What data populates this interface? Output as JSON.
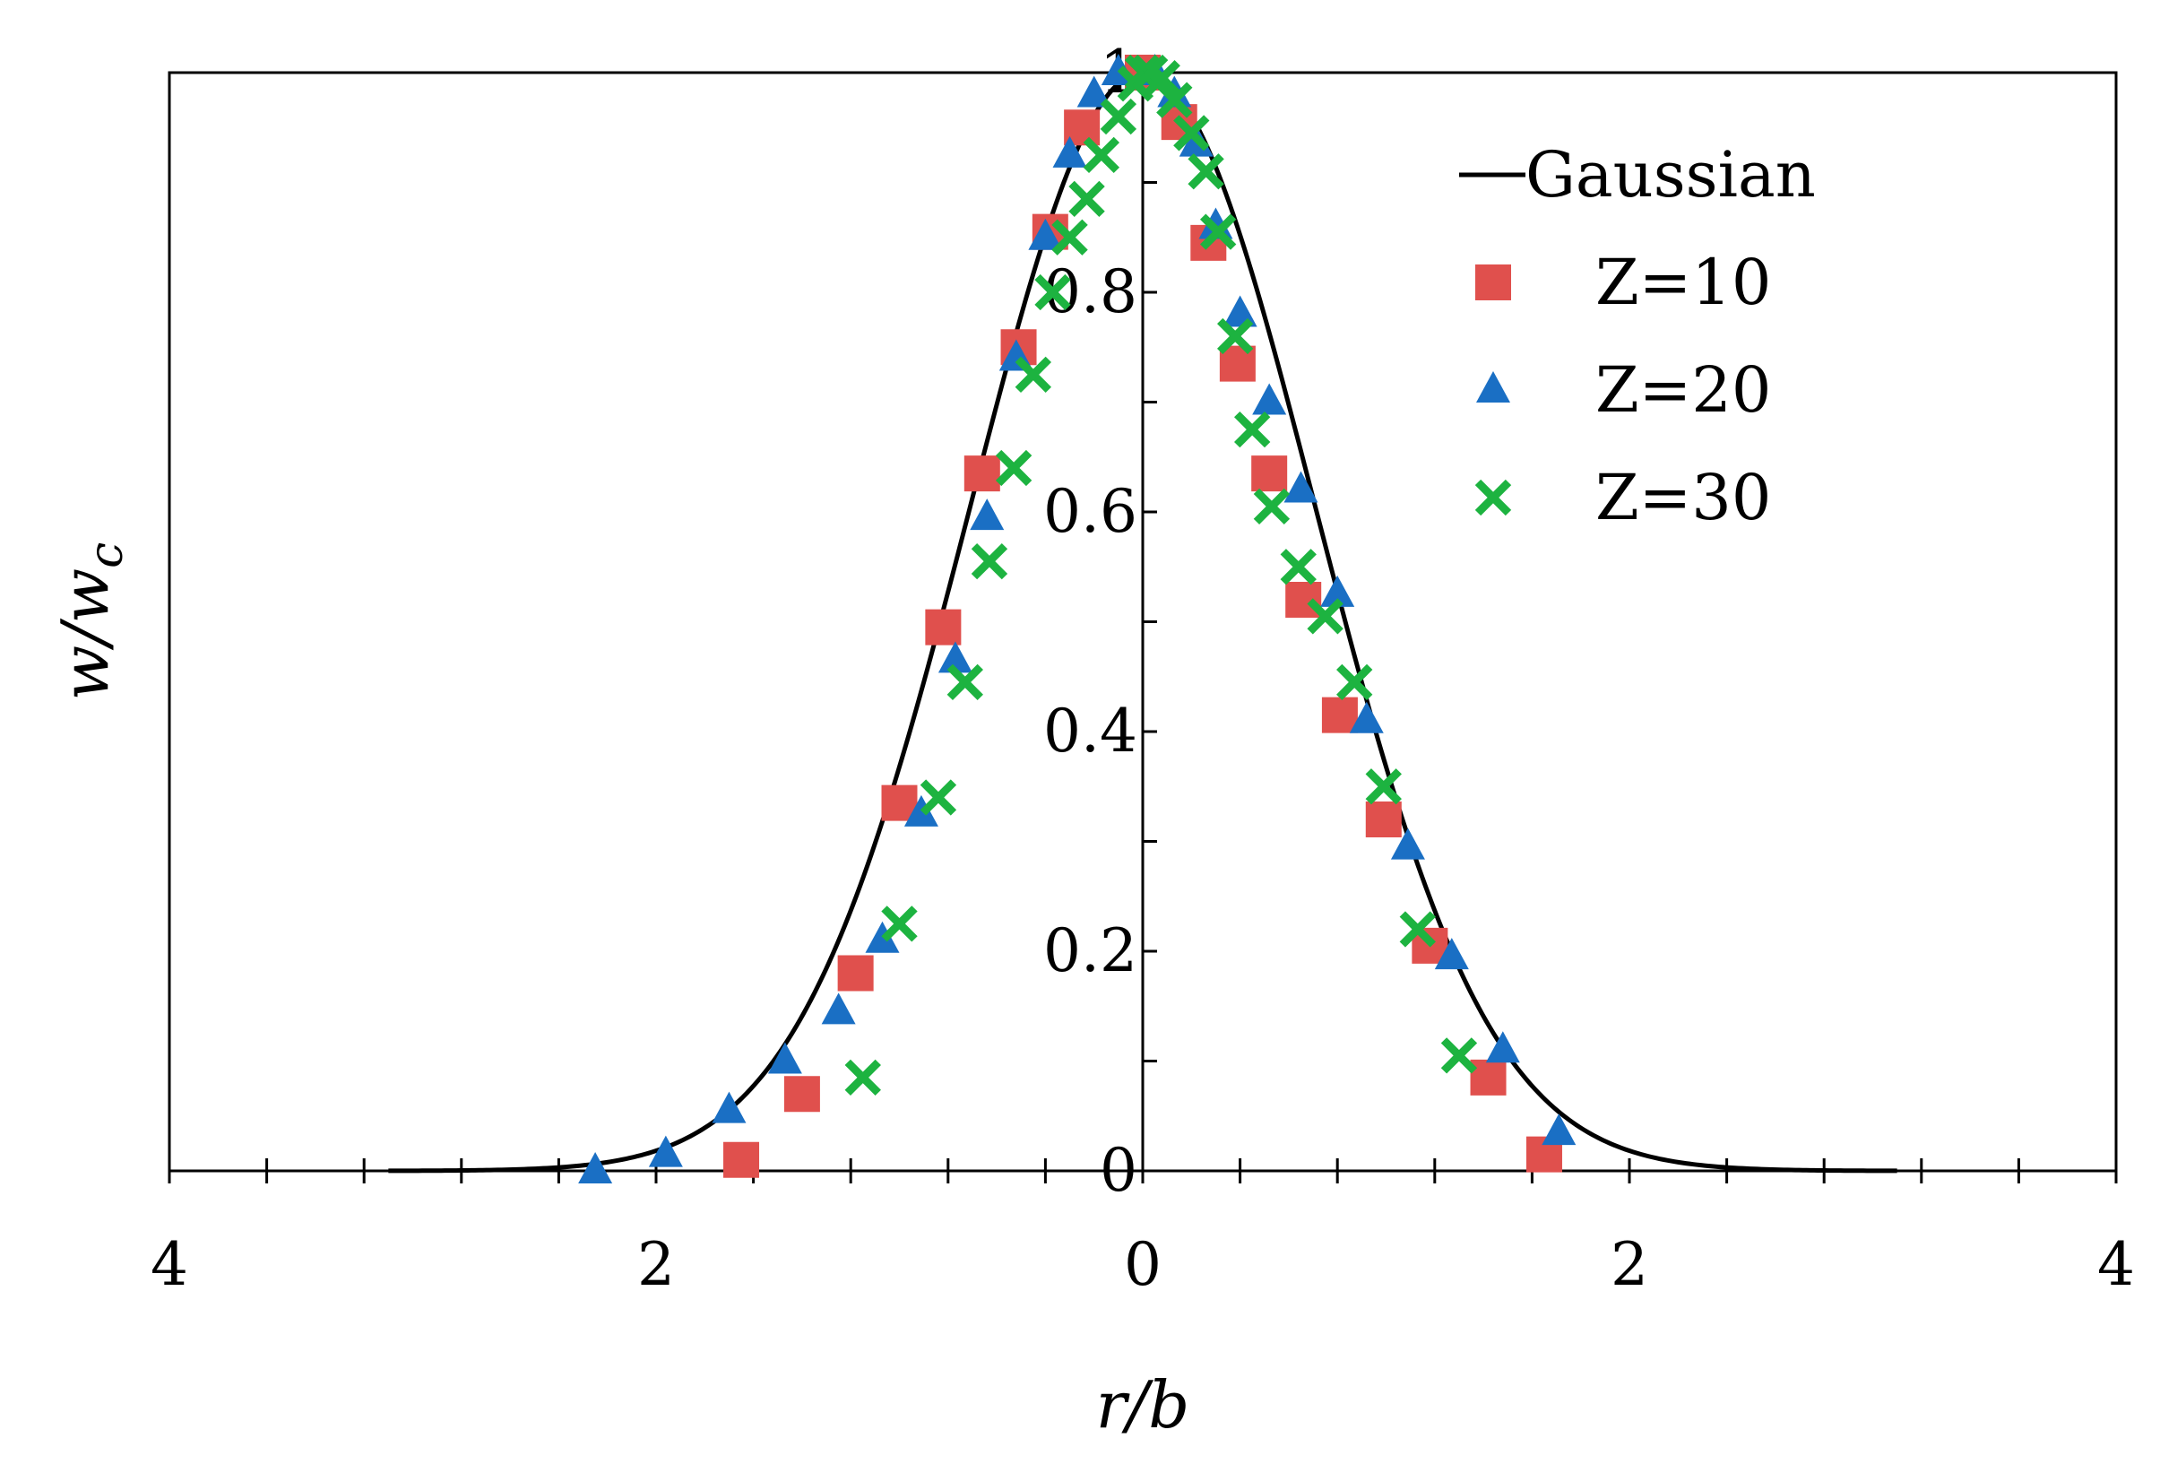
{
  "chart_data": {
    "type": "scatter",
    "xlabel": "r/b",
    "ylabel": "w/w_c",
    "ylabel_main": "w/w",
    "ylabel_sub": "c",
    "xlim": [
      -4,
      4
    ],
    "ylim": [
      0,
      1
    ],
    "x_ticks": [
      -4,
      -2,
      0,
      2,
      4
    ],
    "x_tick_labels": [
      "4",
      "2",
      "0",
      "2",
      "4"
    ],
    "x_minor_step": 0.4,
    "y_ticks": [
      0,
      0.2,
      0.4,
      0.6,
      0.8,
      1
    ],
    "y_tick_labels": [
      "0",
      "0.2",
      "0.4",
      "0.6",
      "0.8",
      "1"
    ],
    "y_minor_step": 0.1,
    "grid": false,
    "legend_position": "top-right",
    "series": [
      {
        "name": "Gaussian",
        "kind": "line",
        "color": "#000000",
        "function": "exp(-x^2)",
        "x_range": [
          -3.1,
          3.1
        ]
      },
      {
        "name": "Z=10",
        "kind": "marker",
        "marker": "square",
        "color": "#e0504d",
        "points": [
          [
            -1.65,
            0.01
          ],
          [
            -1.4,
            0.07
          ],
          [
            -1.18,
            0.18
          ],
          [
            -1.0,
            0.335
          ],
          [
            -0.82,
            0.495
          ],
          [
            -0.66,
            0.635
          ],
          [
            -0.51,
            0.75
          ],
          [
            -0.38,
            0.855
          ],
          [
            -0.25,
            0.95
          ],
          [
            0.0,
            1.0
          ],
          [
            0.15,
            0.955
          ],
          [
            0.27,
            0.845
          ],
          [
            0.39,
            0.735
          ],
          [
            0.52,
            0.635
          ],
          [
            0.66,
            0.52
          ],
          [
            0.81,
            0.415
          ],
          [
            0.99,
            0.32
          ],
          [
            1.18,
            0.205
          ],
          [
            1.42,
            0.085
          ],
          [
            1.65,
            0.015
          ]
        ]
      },
      {
        "name": "Z=20",
        "kind": "marker",
        "marker": "triangle",
        "color": "#1a6fc4",
        "points": [
          [
            -2.25,
            0.0
          ],
          [
            -1.96,
            0.015
          ],
          [
            -1.7,
            0.055
          ],
          [
            -1.47,
            0.1
          ],
          [
            -1.25,
            0.145
          ],
          [
            -1.07,
            0.21
          ],
          [
            -0.91,
            0.325
          ],
          [
            -0.77,
            0.465
          ],
          [
            -0.64,
            0.595
          ],
          [
            -0.52,
            0.74
          ],
          [
            -0.4,
            0.85
          ],
          [
            -0.3,
            0.925
          ],
          [
            -0.2,
            0.98
          ],
          [
            -0.1,
            1.0
          ],
          [
            0.05,
            1.0
          ],
          [
            0.13,
            0.98
          ],
          [
            0.22,
            0.935
          ],
          [
            0.3,
            0.86
          ],
          [
            0.4,
            0.78
          ],
          [
            0.52,
            0.7
          ],
          [
            0.65,
            0.62
          ],
          [
            0.8,
            0.525
          ],
          [
            0.92,
            0.41
          ],
          [
            1.09,
            0.295
          ],
          [
            1.27,
            0.195
          ],
          [
            1.48,
            0.11
          ],
          [
            1.71,
            0.035
          ]
        ]
      },
      {
        "name": "Z=30",
        "kind": "marker",
        "marker": "x",
        "color": "#1db340",
        "points": [
          [
            -1.15,
            0.085
          ],
          [
            -1.0,
            0.225
          ],
          [
            -0.84,
            0.34
          ],
          [
            -0.73,
            0.445
          ],
          [
            -0.63,
            0.555
          ],
          [
            -0.53,
            0.64
          ],
          [
            -0.45,
            0.725
          ],
          [
            -0.37,
            0.8
          ],
          [
            -0.3,
            0.85
          ],
          [
            -0.23,
            0.885
          ],
          [
            -0.17,
            0.925
          ],
          [
            -0.1,
            0.96
          ],
          [
            -0.03,
            0.99
          ],
          [
            0.0,
            1.0
          ],
          [
            0.03,
            1.0
          ],
          [
            0.08,
            0.995
          ],
          [
            0.13,
            0.975
          ],
          [
            0.2,
            0.945
          ],
          [
            0.26,
            0.91
          ],
          [
            0.31,
            0.855
          ],
          [
            0.38,
            0.76
          ],
          [
            0.45,
            0.675
          ],
          [
            0.53,
            0.605
          ],
          [
            0.64,
            0.55
          ],
          [
            0.75,
            0.505
          ],
          [
            0.87,
            0.445
          ],
          [
            0.99,
            0.35
          ],
          [
            1.13,
            0.22
          ],
          [
            1.3,
            0.105
          ]
        ]
      }
    ]
  }
}
